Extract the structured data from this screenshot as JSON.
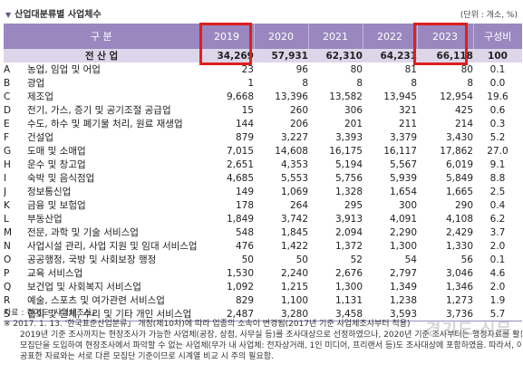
{
  "title": "산업대분류별 사업체수",
  "unit": "(단위 : 개소, %)",
  "columns": [
    "구 분",
    "2019",
    "2020",
    "2021",
    "2022",
    "2023",
    "구성비"
  ],
  "total": {
    "label": "전 산 업",
    "values": [
      "34,269",
      "57,931",
      "62,310",
      "64,231",
      "66,118",
      "100"
    ]
  },
  "rows": [
    {
      "code": "A",
      "name": "농업, 임업 및 어업",
      "values": [
        "23",
        "96",
        "80",
        "81",
        "80",
        "0.1"
      ]
    },
    {
      "code": "B",
      "name": "광업",
      "values": [
        "1",
        "8",
        "8",
        "8",
        "8",
        "0.0"
      ]
    },
    {
      "code": "C",
      "name": "제조업",
      "values": [
        "9,668",
        "13,396",
        "13,582",
        "13,945",
        "12,954",
        "19.6"
      ]
    },
    {
      "code": "D",
      "name": "전기, 가스, 증기 및 공기조절 공급업",
      "values": [
        "15",
        "260",
        "306",
        "321",
        "425",
        "0.6"
      ]
    },
    {
      "code": "E",
      "name": "수도, 하수 및 폐기물 처리, 원료 재생업",
      "values": [
        "144",
        "206",
        "201",
        "211",
        "214",
        "0.3"
      ]
    },
    {
      "code": "F",
      "name": "건설업",
      "values": [
        "879",
        "3,227",
        "3,393",
        "3,379",
        "3,430",
        "5.2"
      ]
    },
    {
      "code": "G",
      "name": "도매 및 소매업",
      "values": [
        "7,015",
        "14,608",
        "16,175",
        "16,117",
        "17,862",
        "27.0"
      ]
    },
    {
      "code": "H",
      "name": "운수 및 창고업",
      "values": [
        "2,651",
        "4,353",
        "5,194",
        "5,567",
        "6,019",
        "9.1"
      ]
    },
    {
      "code": "I",
      "name": "숙박 및 음식점업",
      "values": [
        "4,685",
        "5,553",
        "5,756",
        "5,939",
        "5,849",
        "8.8"
      ]
    },
    {
      "code": "J",
      "name": "정보통신업",
      "values": [
        "149",
        "1,069",
        "1,328",
        "1,654",
        "1,665",
        "2.5"
      ]
    },
    {
      "code": "K",
      "name": "금융 및 보험업",
      "values": [
        "178",
        "264",
        "295",
        "300",
        "290",
        "0.4"
      ]
    },
    {
      "code": "L",
      "name": "부동산업",
      "values": [
        "1,849",
        "3,742",
        "3,913",
        "4,091",
        "4,108",
        "6.2"
      ]
    },
    {
      "code": "M",
      "name": "전문, 과학 및 기술 서비스업",
      "values": [
        "548",
        "1,845",
        "2,094",
        "2,290",
        "2,429",
        "3.7"
      ]
    },
    {
      "code": "N",
      "name": "사업시설 관리, 사업 지원 및 임대 서비스업",
      "values": [
        "476",
        "1,422",
        "1,372",
        "1,300",
        "1,330",
        "2.0"
      ]
    },
    {
      "code": "O",
      "name": "공공행정, 국방 및 사회보장 행정",
      "values": [
        "50",
        "50",
        "52",
        "54",
        "56",
        "0.1"
      ]
    },
    {
      "code": "P",
      "name": "교육 서비스업",
      "values": [
        "1,530",
        "2,240",
        "2,676",
        "2,797",
        "3,046",
        "4.6"
      ]
    },
    {
      "code": "Q",
      "name": "보건업 및 사회복지 서비스업",
      "values": [
        "1,092",
        "1,215",
        "1,300",
        "1,349",
        "1,346",
        "2.0"
      ]
    },
    {
      "code": "R",
      "name": "예술, 스포츠 및 여가관련 서비스업",
      "values": [
        "829",
        "1,100",
        "1,131",
        "1,238",
        "1,273",
        "1.9"
      ]
    },
    {
      "code": "S",
      "name": "협회 및 단체, 수리 및 기타 개인 서비스업",
      "values": [
        "2,487",
        "3,280",
        "3,458",
        "3,593",
        "3,736",
        "5.7"
      ]
    }
  ],
  "notes": {
    "source": "자료 : 경기도 '사업체조사」",
    "line1": "※ 2017. 1. 13. '한국표준산업분류」 개정(제10차)에 따라 업종의 소속이 변경됨(2017년 기준 사업체조사부터 적용)",
    "line2": "2019년 기준 조사까지는 현장조사가 가능한 사업체(공장, 상점, 사무실 등)를 조사대상으로 선정하였으나, 2020년 기준 조사부터는 행정자료를 활용한",
    "line3": "모집단을 도입하여 현장조사에서 파악할 수 없는 사업체(무가 내 사업체: 전자상거래, 1인 미디어, 프리랜서 등)도 조사대상에 포함하였음. 따라서, 이전에",
    "line4": "공표한 자료와는 서로 다른 모집단 기준이므로 시계열 비교 시 주의 필요함."
  },
  "watermark": "경기도 신문"
}
